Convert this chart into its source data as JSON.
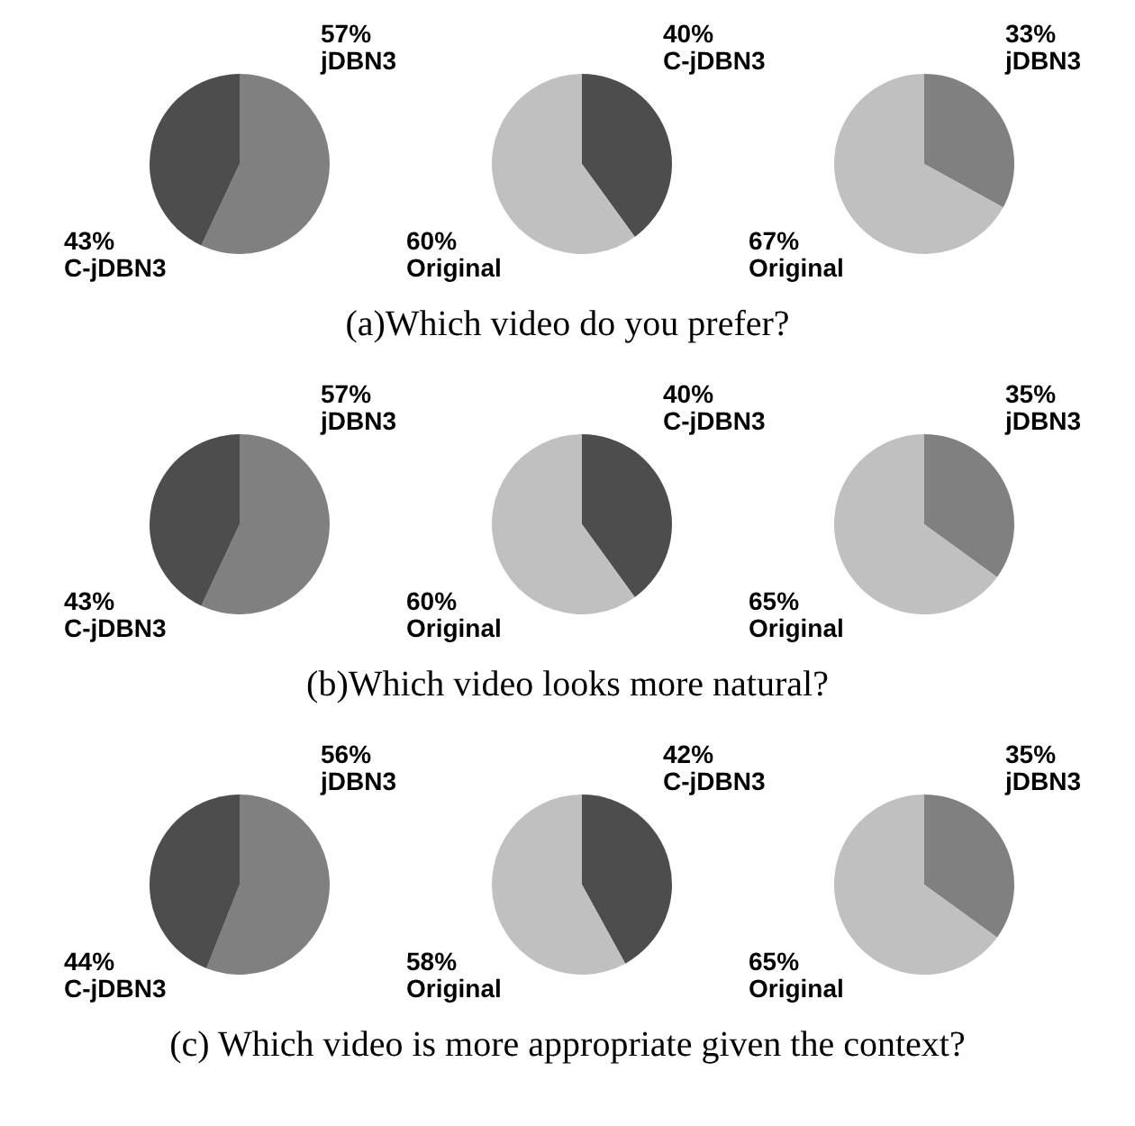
{
  "chart_data": [
    {
      "type": "pie",
      "categories": [
        "jDBN3",
        "C-jDBN3"
      ],
      "values": [
        57,
        43
      ],
      "colors": [
        "#808080",
        "#4d4d4d"
      ],
      "value_labels": [
        "57%",
        "43%"
      ]
    },
    {
      "type": "pie",
      "categories": [
        "C-jDBN3",
        "Original"
      ],
      "values": [
        40,
        60
      ],
      "colors": [
        "#4d4d4d",
        "#c0c0c0"
      ],
      "value_labels": [
        "40%",
        "60%"
      ],
      "annotations": [
        "(a)Which video do you prefer?"
      ]
    },
    {
      "type": "pie",
      "categories": [
        "jDBN3",
        "Original"
      ],
      "values": [
        33,
        67
      ],
      "colors": [
        "#808080",
        "#c0c0c0"
      ],
      "value_labels": [
        "33%",
        "67%"
      ]
    },
    {
      "type": "pie",
      "categories": [
        "jDBN3",
        "C-jDBN3"
      ],
      "values": [
        57,
        43
      ],
      "colors": [
        "#808080",
        "#4d4d4d"
      ],
      "value_labels": [
        "57%",
        "43%"
      ]
    },
    {
      "type": "pie",
      "categories": [
        "C-jDBN3",
        "Original"
      ],
      "values": [
        40,
        60
      ],
      "colors": [
        "#4d4d4d",
        "#c0c0c0"
      ],
      "value_labels": [
        "40%",
        "60%"
      ],
      "annotations": [
        "(b)Which video looks more natural?"
      ]
    },
    {
      "type": "pie",
      "categories": [
        "jDBN3",
        "Original"
      ],
      "values": [
        35,
        65
      ],
      "colors": [
        "#808080",
        "#c0c0c0"
      ],
      "value_labels": [
        "35%",
        "65%"
      ]
    },
    {
      "type": "pie",
      "categories": [
        "jDBN3",
        "C-jDBN3"
      ],
      "values": [
        56,
        44
      ],
      "colors": [
        "#808080",
        "#4d4d4d"
      ],
      "value_labels": [
        "56%",
        "44%"
      ]
    },
    {
      "type": "pie",
      "categories": [
        "C-jDBN3",
        "Original"
      ],
      "values": [
        42,
        58
      ],
      "colors": [
        "#4d4d4d",
        "#c0c0c0"
      ],
      "value_labels": [
        "42%",
        "58%"
      ],
      "annotations": [
        "(c) Which video is more appropriate given the context?"
      ]
    },
    {
      "type": "pie",
      "categories": [
        "jDBN3",
        "Original"
      ],
      "values": [
        35,
        65
      ],
      "colors": [
        "#808080",
        "#c0c0c0"
      ],
      "value_labels": [
        "35%",
        "65%"
      ]
    }
  ]
}
